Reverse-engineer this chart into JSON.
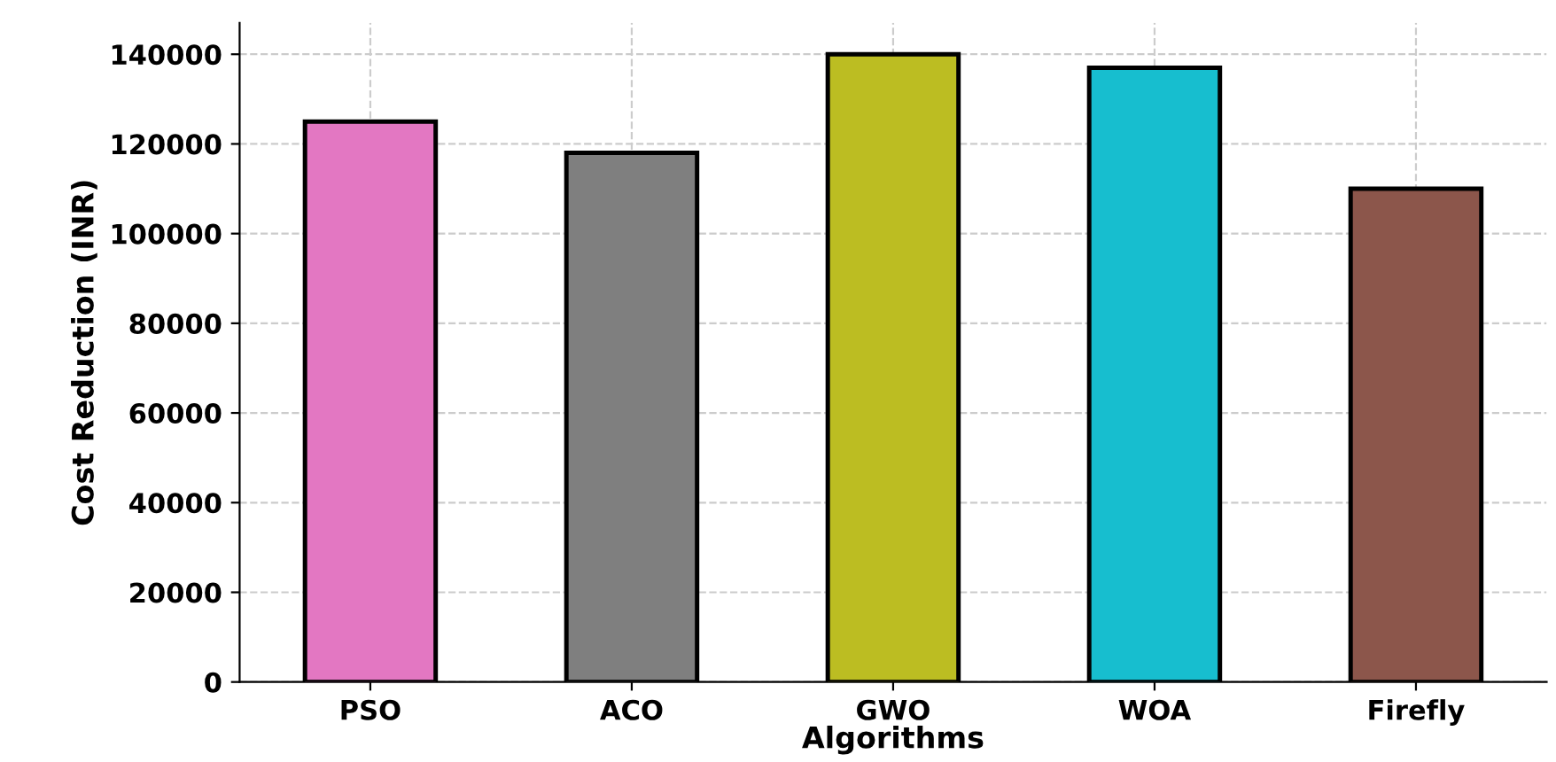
{
  "chart_data": {
    "type": "bar",
    "xlabel": "Algorithms",
    "ylabel": "Cost Reduction (INR)",
    "categories": [
      "PSO",
      "ACO",
      "GWO",
      "WOA",
      "Firefly"
    ],
    "values": [
      125000,
      118000,
      140000,
      137000,
      110000
    ],
    "colors": [
      "#e377c2",
      "#7f7f7f",
      "#bcbd22",
      "#17becf",
      "#8c564b"
    ],
    "ylim": [
      0,
      147000
    ],
    "yticks": [
      0,
      20000,
      40000,
      60000,
      80000,
      100000,
      120000,
      140000
    ],
    "grid": true
  }
}
